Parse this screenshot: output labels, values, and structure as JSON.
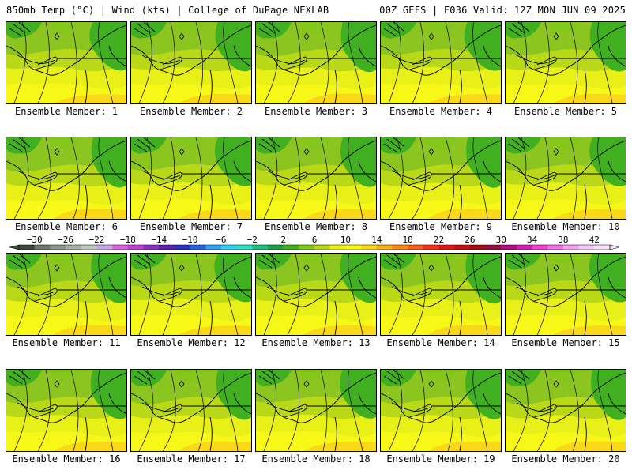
{
  "header": {
    "left": "850mb Temp (°C) | Wind (kts) | College of DuPage NEXLAB",
    "right": "00Z GEFS | F036 Valid: 12Z MON JUN 09 2025"
  },
  "colorbar": {
    "ticks": [
      "−30",
      "−26",
      "−22",
      "−18",
      "−14",
      "−10",
      "−6",
      "−2",
      "2",
      "6",
      "10",
      "14",
      "18",
      "22",
      "26",
      "30",
      "34",
      "38",
      "42"
    ],
    "min": -32,
    "max": 44,
    "colors": [
      "#3a4a3a",
      "#6b7b6b",
      "#8a9a8a",
      "#a3b3a3",
      "#c0c8c0",
      "#c7a8e8",
      "#e060e0",
      "#c040d0",
      "#8a30c0",
      "#5a20b0",
      "#2a30c0",
      "#2a60e0",
      "#30a0f0",
      "#30d0f0",
      "#30e0c0",
      "#20c080",
      "#20a040",
      "#40b020",
      "#80c818",
      "#b8d818",
      "#e8f018",
      "#f8f818",
      "#f8d818",
      "#f8b018",
      "#f88818",
      "#f86018",
      "#f83018",
      "#e01818",
      "#c01010",
      "#a01010",
      "#901040",
      "#b01080",
      "#d020b0",
      "#f040d0",
      "#f070e8",
      "#f8a0f0",
      "#f8c8f8",
      "#f8e0f8"
    ]
  },
  "chart_data": {
    "type": "heatmap",
    "title": "850mb Temp (°C) | Wind (kts) | College of DuPage NEXLAB",
    "subtitle": "00Z GEFS | F036 Valid: 12Z MON JUN 09 2025",
    "colorbar_ticks": [
      -30,
      -26,
      -22,
      -18,
      -14,
      -10,
      -6,
      -2,
      2,
      6,
      10,
      14,
      18,
      22,
      26,
      30,
      34,
      38,
      42
    ],
    "panels": [
      {
        "label": "Ensemble Member: 1"
      },
      {
        "label": "Ensemble Member: 2"
      },
      {
        "label": "Ensemble Member: 3"
      },
      {
        "label": "Ensemble Member: 4"
      },
      {
        "label": "Ensemble Member: 5"
      },
      {
        "label": "Ensemble Member: 6"
      },
      {
        "label": "Ensemble Member: 7"
      },
      {
        "label": "Ensemble Member: 8"
      },
      {
        "label": "Ensemble Member: 9"
      },
      {
        "label": "Ensemble Member: 10"
      },
      {
        "label": "Ensemble Member: 11"
      },
      {
        "label": "Ensemble Member: 12"
      },
      {
        "label": "Ensemble Member: 13"
      },
      {
        "label": "Ensemble Member: 14"
      },
      {
        "label": "Ensemble Member: 15"
      },
      {
        "label": "Ensemble Member: 16"
      },
      {
        "label": "Ensemble Member: 17"
      },
      {
        "label": "Ensemble Member: 18"
      },
      {
        "label": "Ensemble Member: 19"
      },
      {
        "label": "Ensemble Member: 20"
      }
    ]
  }
}
